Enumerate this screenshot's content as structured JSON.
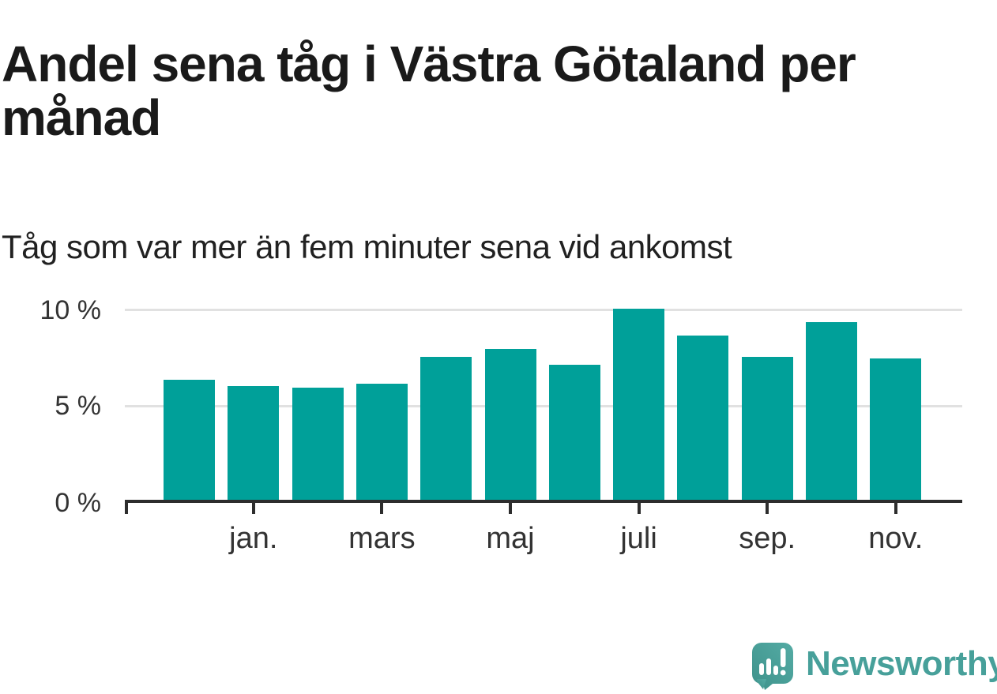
{
  "header": {
    "title": "Andel sena tåg i Västra Götaland per månad",
    "subtitle": "Tåg som var mer än fem minuter sena vid ankomst"
  },
  "chart_data": {
    "type": "bar",
    "title": "Andel sena tåg i Västra Götaland per månad",
    "subtitle": "Tåg som var mer än fem minuter sena vid ankomst",
    "categories": [
      "",
      "jan.",
      "",
      "mars",
      "",
      "maj",
      "",
      "juli",
      "",
      "sep.",
      "",
      "nov."
    ],
    "values": [
      6.3,
      6.0,
      5.9,
      6.1,
      7.5,
      7.9,
      7.1,
      10.0,
      8.6,
      7.5,
      9.3,
      7.4
    ],
    "unit": "%",
    "xlabel": "",
    "ylabel": "",
    "ylim": [
      0,
      10
    ],
    "y_ticks_top_down": [
      "10 %",
      "5 %",
      "0 %"
    ],
    "grid": "horizontal",
    "legend": "none",
    "bar_color": "#00a099"
  },
  "footer": {
    "brand": "Newsworthy"
  },
  "colors": {
    "bar": "#00a099",
    "axis": "#2d2d2d",
    "grid": "#e1e1e1",
    "title_text": "#1a1a1a",
    "label_text": "#333333",
    "brand": "#47a09a"
  }
}
